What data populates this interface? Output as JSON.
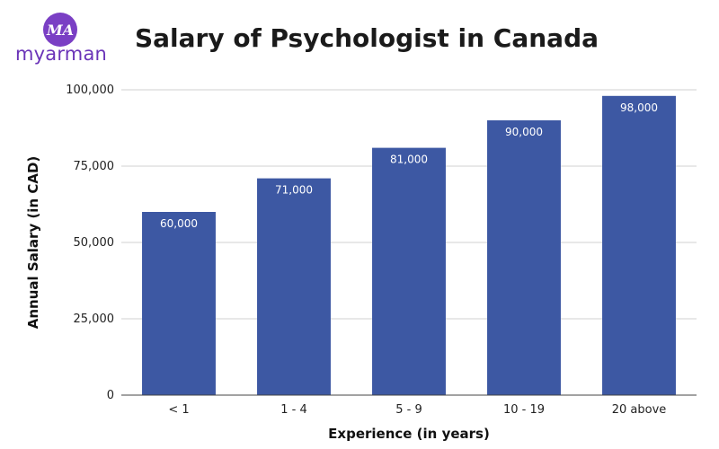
{
  "logo": {
    "mark": "MA",
    "wordmark": "myarman"
  },
  "colors": {
    "bar": "#3d58a3",
    "grid": "#d0d0d0",
    "axis": "#444444",
    "brand": "#7a3fc4"
  },
  "chart_data": {
    "type": "bar",
    "title": "Salary of Psychologist in Canada",
    "xlabel": "Experience (in years)",
    "ylabel": "Annual Salary (in CAD)",
    "categories": [
      "< 1",
      "1 - 4",
      "5 - 9",
      "10 - 19",
      "20 above"
    ],
    "values": [
      60000,
      71000,
      81000,
      90000,
      98000
    ],
    "data_labels": [
      "60,000",
      "71,000",
      "81,000",
      "90,000",
      "98,000"
    ],
    "ylim": [
      0,
      100000
    ],
    "yticks": [
      0,
      25000,
      50000,
      75000,
      100000
    ],
    "ytick_labels": [
      "0",
      "25,000",
      "50,000",
      "75,000",
      "100,000"
    ],
    "grid": true,
    "legend": "none"
  }
}
